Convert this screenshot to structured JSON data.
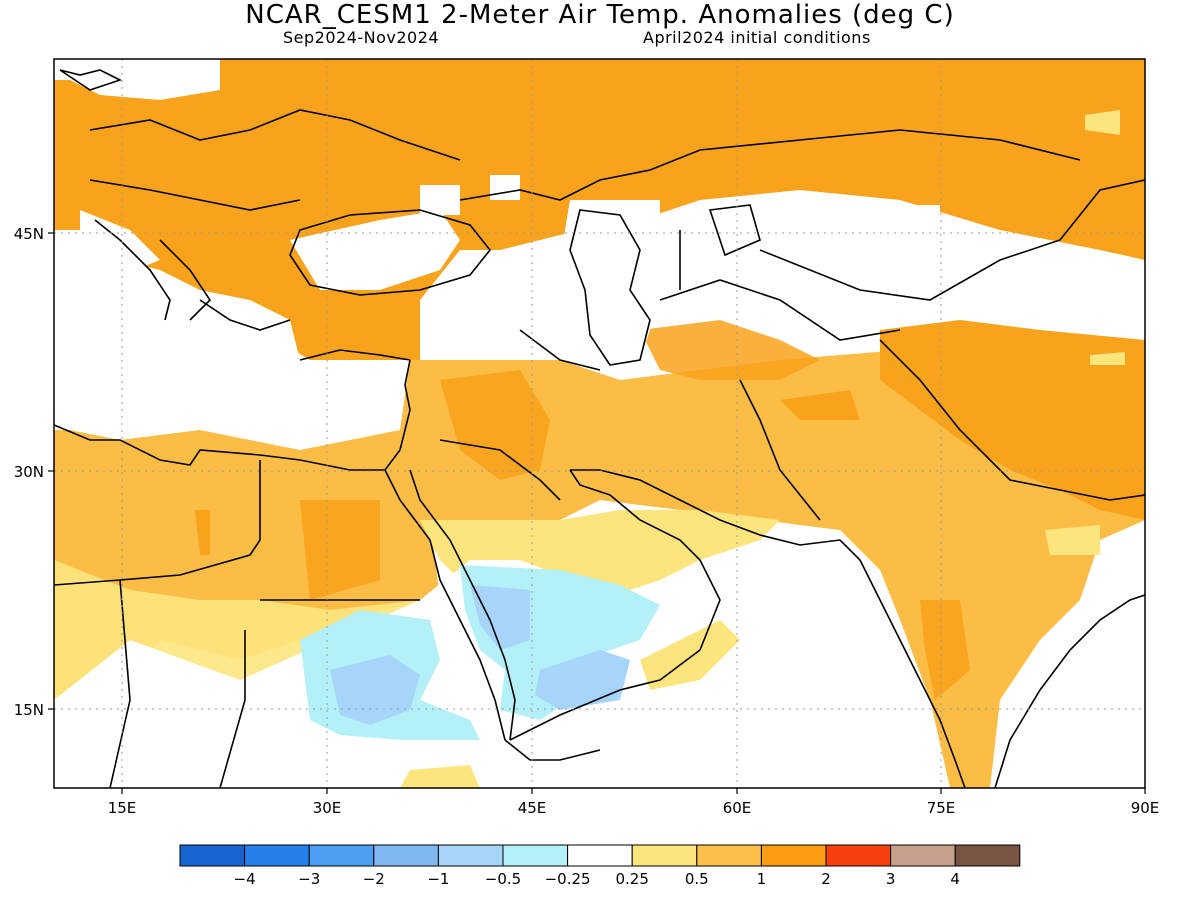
{
  "title": "NCAR_CESM1 2-Meter Air Temp. Anomalies (deg C)",
  "subtitle_left": "Sep2024-Nov2024",
  "subtitle_right": "April2024 initial conditions",
  "axes": {
    "lon_ticks": [
      "15E",
      "30E",
      "45E",
      "60E",
      "75E",
      "90E"
    ],
    "lat_ticks": [
      "45N",
      "30N",
      "15N"
    ],
    "lon_range": [
      10,
      90
    ],
    "lat_range": [
      10,
      55
    ],
    "grid": "dotted"
  },
  "colorbar": {
    "colors": [
      "#1763d0",
      "#2580ec",
      "#4d9ef2",
      "#80b8f4",
      "#a7d4f9",
      "#b3f0f7",
      "#ffffff",
      "#fde57e",
      "#fcbf4a",
      "#fa9d12",
      "#f6400e",
      "#c7a08c",
      "#7a5443"
    ],
    "labels": [
      "-4",
      "-3",
      "-2",
      "-1",
      "-0.5",
      "-0.25",
      "0.25",
      "0.5",
      "1",
      "2",
      "3",
      "4"
    ]
  },
  "legend_colors": {
    "orange_1_2": "#f9a21b",
    "lightorange_05_1": "#fbbd45",
    "yellow_025_05": "#fde57e",
    "white_neutral": "#ffffff",
    "cyan_m025_m05": "#b3f0f7",
    "lightblue_m05_m1": "#a7d4f9",
    "blue_m1_m2": "#80b8f4"
  }
}
